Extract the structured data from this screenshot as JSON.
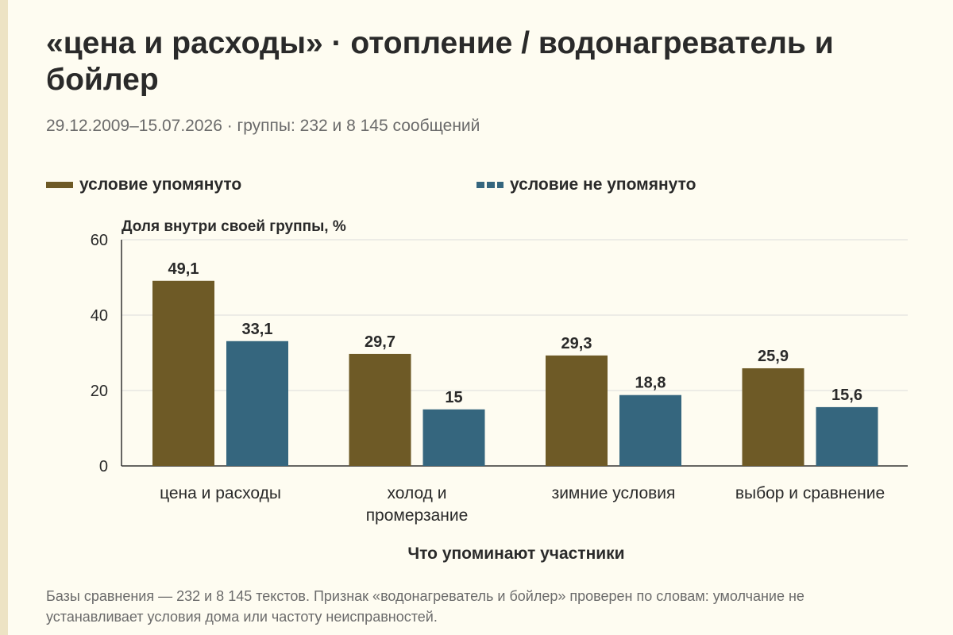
{
  "title": "«цена и расходы» · отопление / водонагреватель и бойлер",
  "subtitle": "29.12.2009–15.07.2026 · группы: 232 и 8 145 сообщений",
  "footnote": "Базы сравнения — 232 и 8 145 текстов. Признак «водонагреватель и бойлер» проверен по словам: умолчание не устанавливает условия дома или частоту неисправностей.",
  "colors": {
    "series_mentioned": "#6e5a26",
    "series_not_mentioned": "#35667e",
    "grid": "#dcdcdc",
    "axis": "#333333",
    "background": "#fefcf1"
  },
  "chart_data": {
    "type": "bar",
    "ylabel": "Доля внутри своей группы, %",
    "xlabel": "Что упоминают участники",
    "ylim": [
      0,
      60
    ],
    "yticks": [
      0,
      20,
      40,
      60
    ],
    "grid": true,
    "legend_position": "top",
    "categories": [
      "цена и расходы",
      "холод и промерзание",
      "зимние условия",
      "выбор и сравнение"
    ],
    "category_lines": [
      [
        "цена и расходы"
      ],
      [
        "холод и",
        "промерзание"
      ],
      [
        "зимние условия"
      ],
      [
        "выбор и сравнение"
      ]
    ],
    "series": [
      {
        "name": "условие упомянуто",
        "values": [
          49.1,
          29.7,
          29.3,
          25.9
        ],
        "labels": [
          "49,1",
          "29,7",
          "29,3",
          "25,9"
        ]
      },
      {
        "name": "условие не упомянуто",
        "values": [
          33.1,
          15,
          18.8,
          15.6
        ],
        "labels": [
          "33,1",
          "15",
          "18,8",
          "15,6"
        ]
      }
    ]
  }
}
